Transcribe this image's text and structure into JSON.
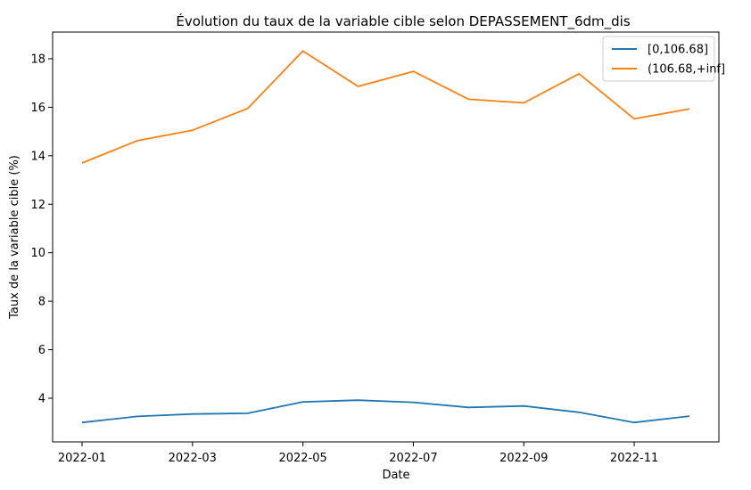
{
  "chart_data": {
    "type": "line",
    "title": "Évolution du taux de la variable cible selon DEPASSEMENT_6dm_dis",
    "xlabel": "Date",
    "ylabel": "Taux de la variable cible (%)",
    "x": [
      "2022-01",
      "2022-02",
      "2022-03",
      "2022-04",
      "2022-05",
      "2022-06",
      "2022-07",
      "2022-08",
      "2022-09",
      "2022-10",
      "2022-11",
      "2022-12"
    ],
    "x_ticks": [
      "2022-01",
      "2022-03",
      "2022-05",
      "2022-07",
      "2022-09",
      "2022-11"
    ],
    "y_ticks": [
      4,
      6,
      8,
      10,
      12,
      14,
      16,
      18
    ],
    "ylim": [
      2.2,
      19.1
    ],
    "grid": false,
    "legend_position": "top-right",
    "series": [
      {
        "name": "[0,106.68]",
        "color": "#1f77b4",
        "values": [
          3.0,
          3.25,
          3.35,
          3.38,
          3.85,
          3.92,
          3.83,
          3.62,
          3.68,
          3.42,
          3.0,
          3.26
        ]
      },
      {
        "name": "(106.68,+inf]",
        "color": "#ff7f0e",
        "values": [
          13.7,
          14.62,
          15.05,
          15.95,
          18.32,
          16.86,
          17.48,
          16.33,
          16.18,
          17.38,
          15.52,
          15.93
        ]
      }
    ]
  }
}
